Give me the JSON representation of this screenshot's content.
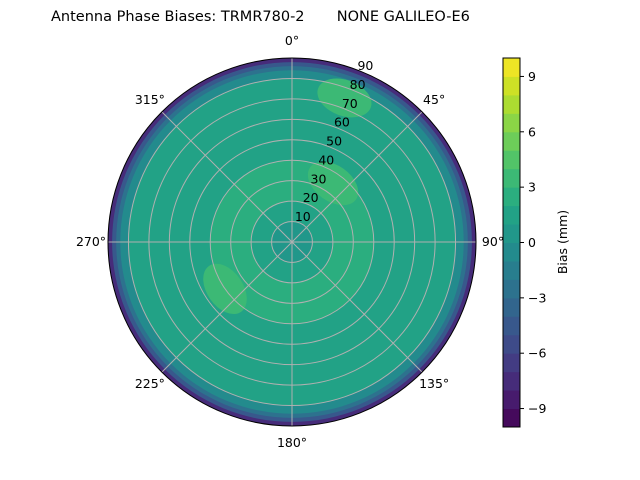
{
  "chart_data": {
    "type": "heatmap",
    "subtype": "polar-contour",
    "title": "Antenna Phase Biases: TRMR780-2       NONE GALILEO-E6",
    "theta_direction": "clockwise",
    "theta_zero": "top",
    "theta_ticks": [
      "0°",
      "45°",
      "90°",
      "135°",
      "180°",
      "225°",
      "270°",
      "315°"
    ],
    "r_ticks": [
      "10",
      "20",
      "30",
      "40",
      "50",
      "60",
      "70",
      "80",
      "90"
    ],
    "r_range": [
      0,
      90
    ],
    "grid": true,
    "colorbar": {
      "label": "Bias (mm)",
      "colormap": "viridis",
      "range": [
        -10,
        10
      ],
      "levels": 20,
      "ticks": [
        "−9",
        "−6",
        "−3",
        "0",
        "3",
        "6",
        "9"
      ],
      "position": "right"
    },
    "radial_profile": {
      "zenith_angle": [
        0,
        20,
        40,
        60,
        80,
        84,
        86,
        88,
        90
      ],
      "bias": [
        0.5,
        1.5,
        2.5,
        1.5,
        1.5,
        -1,
        -3,
        -5,
        -7.5
      ]
    },
    "highlights": [
      {
        "azimuth": 35,
        "zenith_angle": 35,
        "bias": 3.5
      },
      {
        "azimuth": 20,
        "zenith_angle": 75,
        "bias": 3.5
      },
      {
        "azimuth": 235,
        "zenith_angle": 40,
        "bias": 3
      }
    ]
  }
}
